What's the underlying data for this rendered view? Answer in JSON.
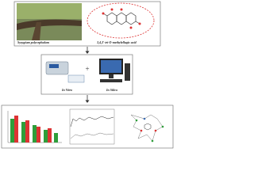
{
  "top": {
    "species_label": "Syzygium polycephalum",
    "compound_label": "3,4,3'-tri-O-methylellagic acid"
  },
  "middle": {
    "plus": "+",
    "in_vitro": "In Vitro",
    "in_silico": "In Silico"
  }
}
